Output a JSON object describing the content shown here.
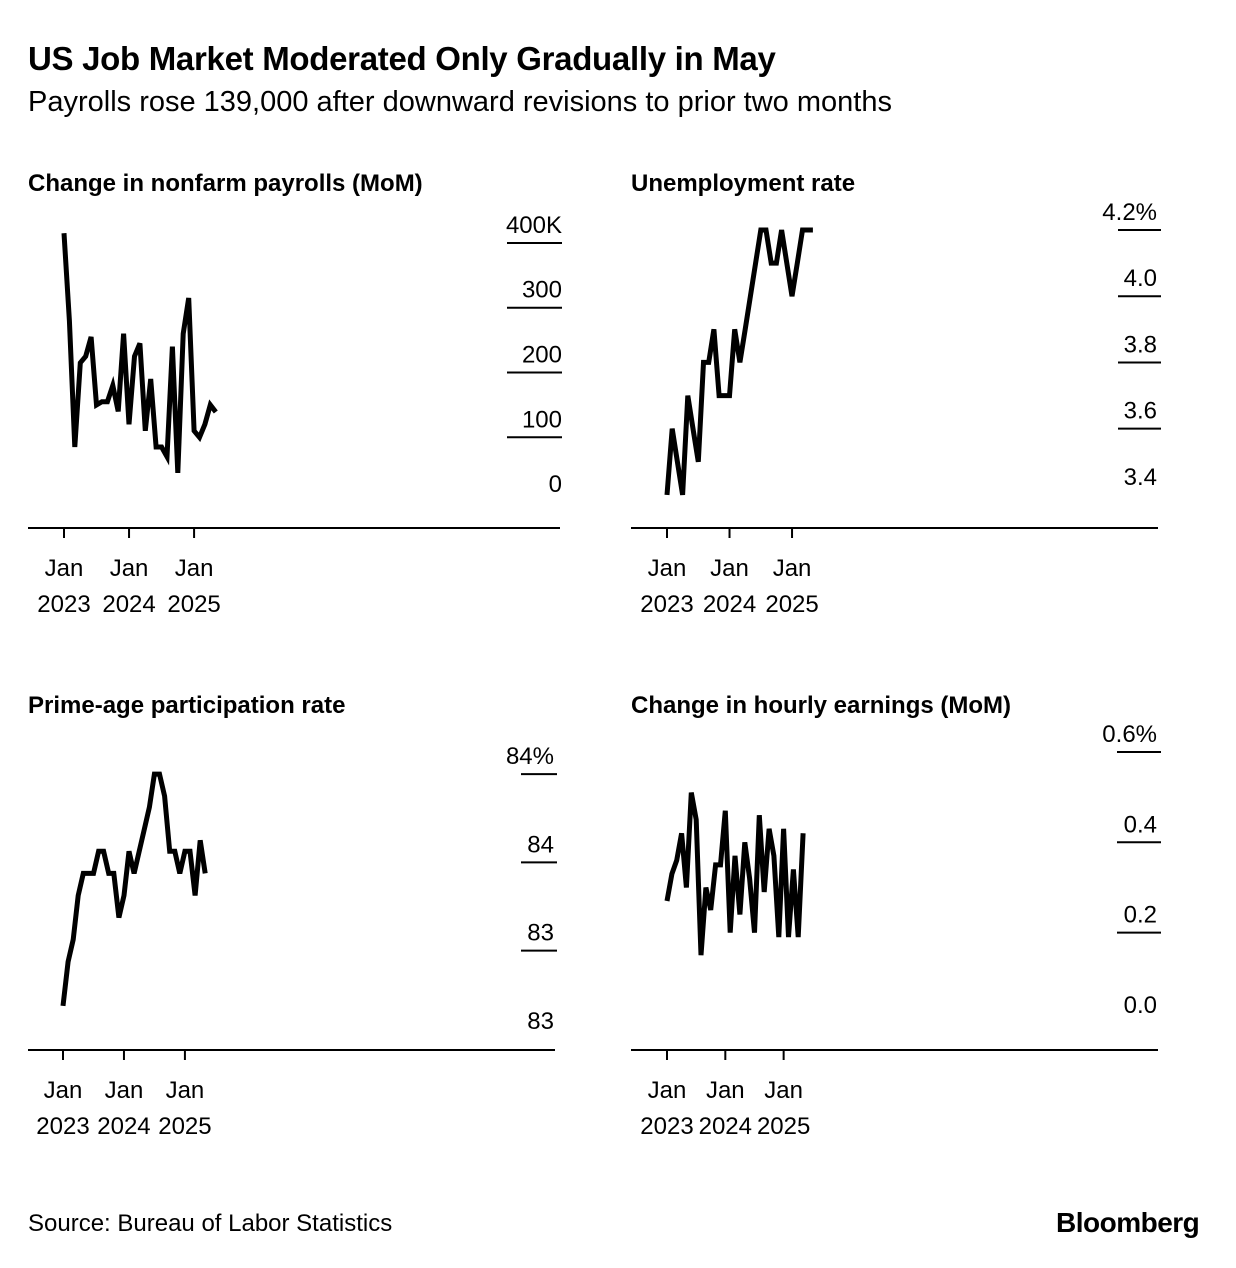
{
  "title": "US Job Market Moderated Only Gradually in May",
  "subtitle": "Payrolls rose 139,000 after downward revisions to prior two months",
  "source": "Source: Bureau of Labor Statistics",
  "logo": "Bloomberg",
  "chart_data": [
    {
      "type": "line",
      "title": "Change in nonfarm payrolls (MoM)",
      "x_start": "2023-01",
      "x": [
        "2023-01",
        "2023-02",
        "2023-03",
        "2023-04",
        "2023-05",
        "2023-06",
        "2023-07",
        "2023-08",
        "2023-09",
        "2023-10",
        "2023-11",
        "2023-12",
        "2024-01",
        "2024-02",
        "2024-03",
        "2024-04",
        "2024-05",
        "2024-06",
        "2024-07",
        "2024-08",
        "2024-09",
        "2024-10",
        "2024-11",
        "2024-12",
        "2025-01",
        "2025-02",
        "2025-03",
        "2025-04",
        "2025-05"
      ],
      "values": [
        415,
        280,
        85,
        215,
        225,
        255,
        150,
        155,
        155,
        180,
        140,
        260,
        120,
        225,
        245,
        110,
        190,
        85,
        85,
        70,
        240,
        45,
        260,
        315,
        110,
        100,
        120,
        150,
        139
      ],
      "ylim": [
        -40,
        420
      ],
      "yticks": [
        0,
        100,
        200,
        300,
        400
      ],
      "yticklabels": [
        "0",
        "100",
        "200",
        "300",
        "400K"
      ],
      "xticks": [
        "2023-01",
        "2024-01",
        "2025-01"
      ],
      "xticklabels": [
        [
          "Jan",
          "2023"
        ],
        [
          "Jan",
          "2024"
        ],
        [
          "Jan",
          "2025"
        ]
      ],
      "grid": false
    },
    {
      "type": "line",
      "title": "Unemployment rate",
      "x_start": "2023-01",
      "x": [
        "2023-01",
        "2023-02",
        "2023-03",
        "2023-04",
        "2023-05",
        "2023-06",
        "2023-07",
        "2023-08",
        "2023-09",
        "2023-10",
        "2023-11",
        "2023-12",
        "2024-01",
        "2024-02",
        "2024-03",
        "2024-04",
        "2024-05",
        "2024-06",
        "2024-07",
        "2024-08",
        "2024-09",
        "2024-10",
        "2024-11",
        "2024-12",
        "2025-01",
        "2025-02",
        "2025-03",
        "2025-04",
        "2025-05"
      ],
      "values": [
        3.4,
        3.6,
        3.5,
        3.4,
        3.7,
        3.6,
        3.5,
        3.8,
        3.8,
        3.9,
        3.7,
        3.7,
        3.7,
        3.9,
        3.8,
        3.9,
        4.0,
        4.1,
        4.2,
        4.2,
        4.1,
        4.1,
        4.2,
        4.1,
        4.0,
        4.1,
        4.2,
        4.2,
        4.2
      ],
      "ylim": [
        3.3,
        4.2
      ],
      "yticks": [
        3.4,
        3.6,
        3.8,
        4.0,
        4.2
      ],
      "yticklabels": [
        "3.4",
        "3.6",
        "3.8",
        "4.0",
        "4.2%"
      ],
      "xticks": [
        "2023-01",
        "2024-01",
        "2025-01"
      ],
      "xticklabels": [
        [
          "Jan",
          "2023"
        ],
        [
          "Jan",
          "2024"
        ],
        [
          "Jan",
          "2025"
        ]
      ],
      "grid": false
    },
    {
      "type": "line",
      "title": "Prime-age participation rate",
      "x_start": "2023-01",
      "x": [
        "2023-01",
        "2023-02",
        "2023-03",
        "2023-04",
        "2023-05",
        "2023-06",
        "2023-07",
        "2023-08",
        "2023-09",
        "2023-10",
        "2023-11",
        "2023-12",
        "2024-01",
        "2024-02",
        "2024-03",
        "2024-04",
        "2024-05",
        "2024-06",
        "2024-07",
        "2024-08",
        "2024-09",
        "2024-10",
        "2024-11",
        "2024-12",
        "2025-01",
        "2025-02",
        "2025-03",
        "2025-04",
        "2025-05"
      ],
      "values": [
        82.9,
        83.3,
        83.5,
        83.9,
        84.1,
        84.1,
        84.1,
        84.3,
        84.3,
        84.1,
        84.1,
        83.7,
        83.9,
        84.3,
        84.1,
        84.3,
        84.5,
        84.7,
        85.0,
        85.0,
        84.8,
        84.3,
        84.3,
        84.1,
        84.3,
        84.3,
        83.9,
        84.4,
        84.1
      ],
      "ylim": [
        82.5,
        85.2
      ],
      "yticks": [
        82.6,
        83.4,
        84.2,
        85.0
      ],
      "yticklabels": [
        "83",
        "83",
        "84",
        "84%"
      ],
      "xticks": [
        "2023-01",
        "2024-01",
        "2025-01"
      ],
      "xticklabels": [
        [
          "Jan",
          "2023"
        ],
        [
          "Jan",
          "2024"
        ],
        [
          "Jan",
          "2025"
        ]
      ],
      "grid": false
    },
    {
      "type": "line",
      "title": "Change in hourly earnings (MoM)",
      "x_start": "2023-01",
      "x": [
        "2023-01",
        "2023-02",
        "2023-03",
        "2023-04",
        "2023-05",
        "2023-06",
        "2023-07",
        "2023-08",
        "2023-09",
        "2023-10",
        "2023-11",
        "2023-12",
        "2024-01",
        "2024-02",
        "2024-03",
        "2024-04",
        "2024-05",
        "2024-06",
        "2024-07",
        "2024-08",
        "2024-09",
        "2024-10",
        "2024-11",
        "2024-12",
        "2025-01",
        "2025-02",
        "2025-03",
        "2025-04",
        "2025-05"
      ],
      "values": [
        0.27,
        0.33,
        0.36,
        0.42,
        0.3,
        0.51,
        0.45,
        0.15,
        0.3,
        0.25,
        0.35,
        0.35,
        0.47,
        0.2,
        0.37,
        0.24,
        0.4,
        0.32,
        0.2,
        0.46,
        0.29,
        0.43,
        0.37,
        0.19,
        0.43,
        0.19,
        0.34,
        0.19,
        0.42
      ],
      "ylim": [
        -0.06,
        0.6
      ],
      "yticks": [
        0.0,
        0.2,
        0.4,
        0.6
      ],
      "yticklabels": [
        "0.0",
        "0.2",
        "0.4",
        "0.6%"
      ],
      "xticks": [
        "2023-01",
        "2024-01",
        "2025-01"
      ],
      "xticklabels": [
        [
          "Jan",
          "2023"
        ],
        [
          "Jan",
          "2024"
        ],
        [
          "Jan",
          "2025"
        ]
      ],
      "grid": false
    }
  ]
}
